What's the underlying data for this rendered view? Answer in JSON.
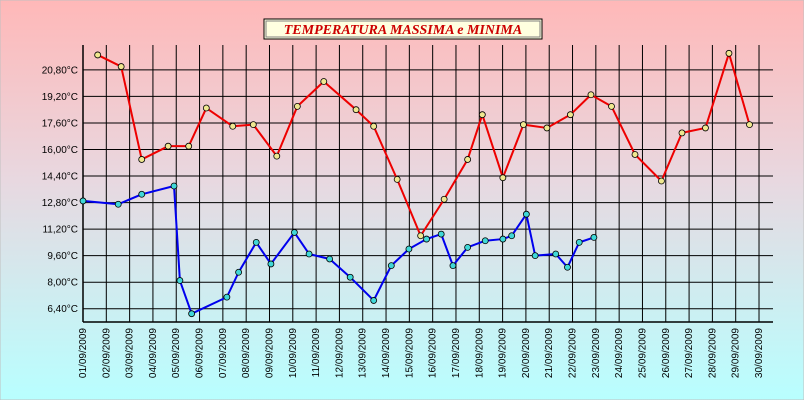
{
  "chart_data": {
    "type": "line",
    "title": "TEMPERATURA MASSIMA e MINIMA",
    "xlabel": "",
    "ylabel": "",
    "categories": [
      "01/09/2009",
      "02/09/2009",
      "03/09/2009",
      "04/09/2009",
      "05/09/2009",
      "06/09/2009",
      "07/09/2009",
      "08/09/2009",
      "09/09/2009",
      "10/09/2009",
      "11/09/2009",
      "12/09/2009",
      "13/09/2009",
      "14/09/2009",
      "15/09/2009",
      "16/09/2009",
      "17/09/2009",
      "18/09/2009",
      "19/09/2009",
      "20/09/2009",
      "21/09/2009",
      "22/09/2009",
      "23/09/2009",
      "24/09/2009",
      "25/09/2009",
      "26/09/2009",
      "27/09/2009",
      "28/09/2009",
      "29/09/2009",
      "30/09/2009"
    ],
    "y_ticks": [
      "6,40°C",
      "8,00°C",
      "9,60°C",
      "11,20°C",
      "12,80°C",
      "14,40°C",
      "16,00°C",
      "17,60°C",
      "19,20°C",
      "20,80°C"
    ],
    "y_tick_values": [
      6.4,
      8.0,
      9.6,
      11.2,
      12.8,
      14.4,
      16.0,
      17.6,
      19.2,
      20.8
    ],
    "ylim": [
      5.6,
      22.3
    ],
    "grid": true,
    "series": [
      {
        "color": "#ee0000",
        "marker_fill": "#f0e890",
        "points": [
          {
            "x": 0.5,
            "y": 21.7
          },
          {
            "x": 1.3,
            "y": 21.0
          },
          {
            "x": 2.0,
            "y": 15.4
          },
          {
            "x": 2.9,
            "y": 16.2
          },
          {
            "x": 3.6,
            "y": 16.2
          },
          {
            "x": 4.2,
            "y": 18.5
          },
          {
            "x": 5.1,
            "y": 17.4
          },
          {
            "x": 5.8,
            "y": 17.5
          },
          {
            "x": 6.6,
            "y": 15.6
          },
          {
            "x": 7.3,
            "y": 18.6
          },
          {
            "x": 8.2,
            "y": 20.1
          },
          {
            "x": 9.3,
            "y": 18.4
          },
          {
            "x": 9.9,
            "y": 17.4
          },
          {
            "x": 10.7,
            "y": 14.2
          },
          {
            "x": 11.5,
            "y": 10.8
          },
          {
            "x": 12.3,
            "y": 13.0
          },
          {
            "x": 13.1,
            "y": 15.4
          },
          {
            "x": 13.6,
            "y": 18.1
          },
          {
            "x": 14.3,
            "y": 14.3
          },
          {
            "x": 15.0,
            "y": 17.5
          },
          {
            "x": 15.8,
            "y": 17.3
          },
          {
            "x": 16.6,
            "y": 18.1
          },
          {
            "x": 17.3,
            "y": 19.3
          },
          {
            "x": 18.0,
            "y": 18.6
          },
          {
            "x": 18.8,
            "y": 15.7
          },
          {
            "x": 19.7,
            "y": 14.1
          },
          {
            "x": 20.4,
            "y": 17.0
          },
          {
            "x": 21.2,
            "y": 17.3
          },
          {
            "x": 22.0,
            "y": 21.8
          },
          {
            "x": 22.7,
            "y": 17.5
          }
        ]
      },
      {
        "color": "#0000ee",
        "marker_fill": "#40d8d8",
        "points": [
          {
            "x": 0.0,
            "y": 12.9
          },
          {
            "x": 1.2,
            "y": 12.7
          },
          {
            "x": 2.0,
            "y": 13.3
          },
          {
            "x": 3.1,
            "y": 13.8
          },
          {
            "x": 3.3,
            "y": 8.1
          },
          {
            "x": 3.7,
            "y": 6.1
          },
          {
            "x": 4.9,
            "y": 7.1
          },
          {
            "x": 5.3,
            "y": 8.6
          },
          {
            "x": 5.9,
            "y": 10.4
          },
          {
            "x": 6.4,
            "y": 9.1
          },
          {
            "x": 7.2,
            "y": 11.0
          },
          {
            "x": 7.7,
            "y": 9.7
          },
          {
            "x": 8.4,
            "y": 9.4
          },
          {
            "x": 9.1,
            "y": 8.3
          },
          {
            "x": 9.9,
            "y": 6.9
          },
          {
            "x": 10.5,
            "y": 9.0
          },
          {
            "x": 11.1,
            "y": 10.0
          },
          {
            "x": 11.7,
            "y": 10.6
          },
          {
            "x": 12.2,
            "y": 10.9
          },
          {
            "x": 12.6,
            "y": 9.0
          },
          {
            "x": 13.1,
            "y": 10.1
          },
          {
            "x": 13.7,
            "y": 10.5
          },
          {
            "x": 14.3,
            "y": 10.6
          },
          {
            "x": 14.6,
            "y": 10.8
          },
          {
            "x": 15.1,
            "y": 12.1
          },
          {
            "x": 15.4,
            "y": 9.6
          },
          {
            "x": 16.1,
            "y": 9.7
          },
          {
            "x": 16.5,
            "y": 8.9
          },
          {
            "x": 16.9,
            "y": 10.4
          },
          {
            "x": 17.4,
            "y": 10.7
          }
        ]
      }
    ]
  }
}
